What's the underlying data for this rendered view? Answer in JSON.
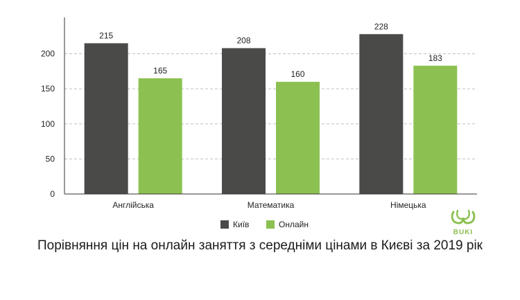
{
  "chart_data": {
    "type": "bar",
    "categories": [
      "Англійська",
      "Математика",
      "Німецька"
    ],
    "series": [
      {
        "name": "Київ",
        "values": [
          215,
          208,
          228
        ],
        "color": "#4a4b48"
      },
      {
        "name": "Онлайн",
        "values": [
          165,
          160,
          183
        ],
        "color": "#8cc152"
      }
    ],
    "ylim": [
      0,
      250
    ],
    "yticks": [
      0,
      50,
      100,
      150,
      200
    ],
    "grid": true,
    "legend_position": "bottom"
  },
  "caption": "Порівняння цін на онлайн заняття з середніми цінами в Києві за 2019 рік",
  "logo": {
    "text": "BUKI",
    "color": "#8cc152"
  }
}
